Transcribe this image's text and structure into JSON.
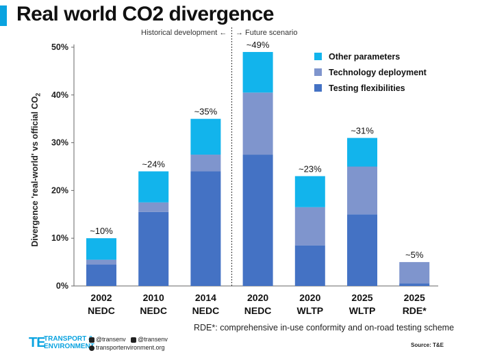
{
  "title": "Real world CO2 divergence",
  "period_labels": {
    "historical": "Historical development ←",
    "future": "→ Future scenario"
  },
  "ylabel": "Divergence 'real-world' vs official CO",
  "ylabel_sub": "2",
  "footnote": "RDE*: comprehensive in-use conformity and on-road testing scheme",
  "source": "Source: T&E",
  "logo": {
    "mark": "TE",
    "line1": "TRANSPORT &",
    "line2": "ENVIRONMENT"
  },
  "social": {
    "twitter": "@transenv",
    "facebook": "@transenv",
    "web": "transportenvironment.org"
  },
  "colors": {
    "other": "#12b4ec",
    "technology": "#7f95cd",
    "testing": "#4472c4",
    "accent": "#0aa3e0"
  },
  "chart_data": {
    "type": "bar",
    "stacked": true,
    "categories": [
      [
        "2002",
        "NEDC"
      ],
      [
        "2010",
        "NEDC"
      ],
      [
        "2014",
        "NEDC"
      ],
      [
        "2020",
        "NEDC"
      ],
      [
        "2020",
        "WLTP"
      ],
      [
        "2025",
        "WLTP"
      ],
      [
        "2025",
        "RDE*"
      ]
    ],
    "series": [
      {
        "name": "Testing flexibilities",
        "values": [
          4.5,
          15.5,
          24,
          27.5,
          8.5,
          15,
          0.5
        ]
      },
      {
        "name": "Technology deployment",
        "values": [
          1.0,
          2.0,
          3.5,
          13,
          8,
          10,
          4.5
        ]
      },
      {
        "name": "Other parameters",
        "values": [
          4.5,
          6.5,
          7.5,
          8.5,
          6.5,
          6,
          0
        ]
      }
    ],
    "totals_labels": [
      "~10%",
      "~24%",
      "~35%",
      "~49%",
      "~23%",
      "~31%",
      "~5%"
    ],
    "yticks": [
      "0%",
      "10%",
      "20%",
      "30%",
      "40%",
      "50%"
    ],
    "ylim": [
      0,
      50
    ],
    "legend_position": "top-right",
    "grid": false
  }
}
